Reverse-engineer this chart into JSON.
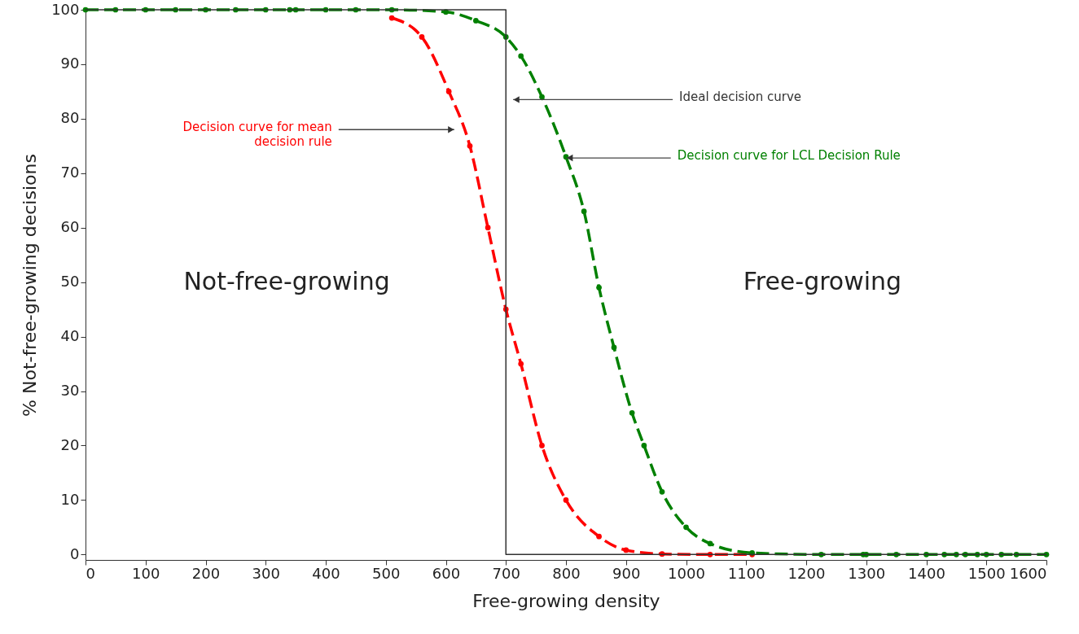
{
  "chart_data": {
    "type": "line",
    "xlabel": "Free-growing density",
    "ylabel": "% Not-free-growing decisions",
    "xlim": [
      0,
      1600
    ],
    "ylim": [
      -1,
      100
    ],
    "xticks": [
      0,
      100,
      200,
      300,
      400,
      500,
      600,
      700,
      800,
      900,
      1000,
      1100,
      1200,
      1300,
      1400,
      1500,
      1600
    ],
    "yticks": [
      0,
      10,
      20,
      30,
      40,
      50,
      60,
      70,
      80,
      90,
      100
    ],
    "grid": false,
    "marker": "circle",
    "series": [
      {
        "color": "#ff0000",
        "line_style": "dashed",
        "x": [
          510,
          560,
          605,
          640,
          670,
          700,
          725,
          760,
          800,
          855,
          900,
          960,
          1040,
          1110
        ],
        "values": [
          98.5,
          95,
          85,
          75,
          60,
          45,
          35,
          20,
          10,
          3.3,
          0.8,
          0.1,
          0,
          0
        ]
      },
      {
        "color": "#008000",
        "line_style": "dashed",
        "x": [
          0,
          50,
          100,
          150,
          200,
          250,
          300,
          340,
          350,
          400,
          450,
          510,
          600,
          650,
          700,
          725,
          760,
          800,
          830,
          855,
          880,
          910,
          930,
          960,
          1000,
          1040,
          1110,
          1225,
          1295,
          1300,
          1350,
          1400,
          1430,
          1450,
          1465,
          1485,
          1500,
          1525,
          1550,
          1600
        ],
        "values": [
          100,
          100,
          100,
          100,
          100,
          100,
          100,
          100,
          100,
          100,
          100,
          100,
          99.6,
          98,
          95,
          91.5,
          84,
          73,
          63,
          49,
          38,
          26,
          20,
          11.5,
          5,
          2,
          0.3,
          0,
          0,
          0,
          0,
          0,
          0,
          0,
          0,
          0,
          0,
          0,
          0,
          0
        ]
      },
      {
        "color": "#333333",
        "line_style": "solid",
        "marker": "none",
        "x": [
          0,
          700,
          700,
          1600
        ],
        "values": [
          100,
          100,
          0,
          0
        ]
      }
    ],
    "annotations": [
      "Not-free-growing",
      "Free-growing",
      "Decision curve for mean\ndecision rule",
      {
        "text": "Decision curve for LCL Decision Rule",
        "x": 801,
        "y": 72.8
      },
      "Ideal decision curve"
    ]
  }
}
